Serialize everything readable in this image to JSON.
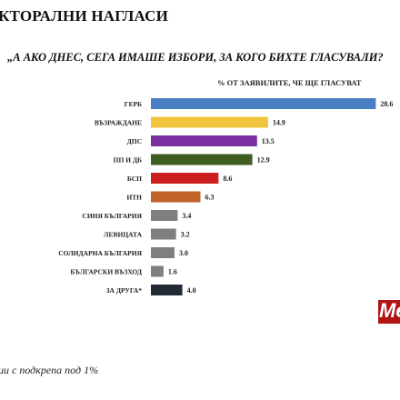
{
  "header": {
    "title": "КТОРАЛНИ НАГЛАСИ",
    "question": "„А АКО ДНЕС, СЕГА ИМАШЕ ИЗБОРИ, ЗА КОГО БИХТЕ ГЛАСУВАЛИ?",
    "subtitle": "% ОТ ЗАЯВИЛИТЕ, ЧЕ ЩЕ ГЛАСУВАТ"
  },
  "footnote": "ии с подкрепа под 1%",
  "logo": {
    "text": "Me"
  },
  "chart_data": {
    "type": "bar",
    "orientation": "horizontal",
    "title": "„А АКО ДНЕС, СЕГА ИМАШЕ ИЗБОРИ, ЗА КОГО БИХТЕ ГЛАСУВАЛИ?",
    "subtitle": "% ОТ ЗАЯВИЛИТЕ, ЧЕ ЩЕ ГЛАСУВАТ",
    "xlabel": "",
    "ylabel": "",
    "xlim": [
      0,
      30
    ],
    "grid": false,
    "legend": "none",
    "categories": [
      "ГЕРБ",
      "ВЪЗРАЖДАНЕ",
      "ДПС",
      "ПП И ДБ",
      "БСП",
      "ИТН",
      "СИНЯ БЪЛГАРИЯ",
      "ЛЕВИЦАТА",
      "СОЛИДАРНА БЪЛГАРИЯ",
      "БЪЛГАРСКИ ВЪЗХОД",
      "ЗА ДРУГА*"
    ],
    "values": [
      28.6,
      14.9,
      13.5,
      12.9,
      8.6,
      6.3,
      3.4,
      3.2,
      3.0,
      1.6,
      4.0
    ],
    "value_labels": [
      "28.6",
      "14.9",
      "13.5",
      "12.9",
      "8.6",
      "6.3",
      "3.4",
      "3.2",
      "3.0",
      "1.6",
      "4.0"
    ],
    "colors": [
      "#4a7ec2",
      "#f0c43c",
      "#7a2fa0",
      "#3e5e22",
      "#cc1f1f",
      "#c0642a",
      "#7f7f7f",
      "#7f7f7f",
      "#7f7f7f",
      "#7f7f7f",
      "#232a36"
    ]
  }
}
